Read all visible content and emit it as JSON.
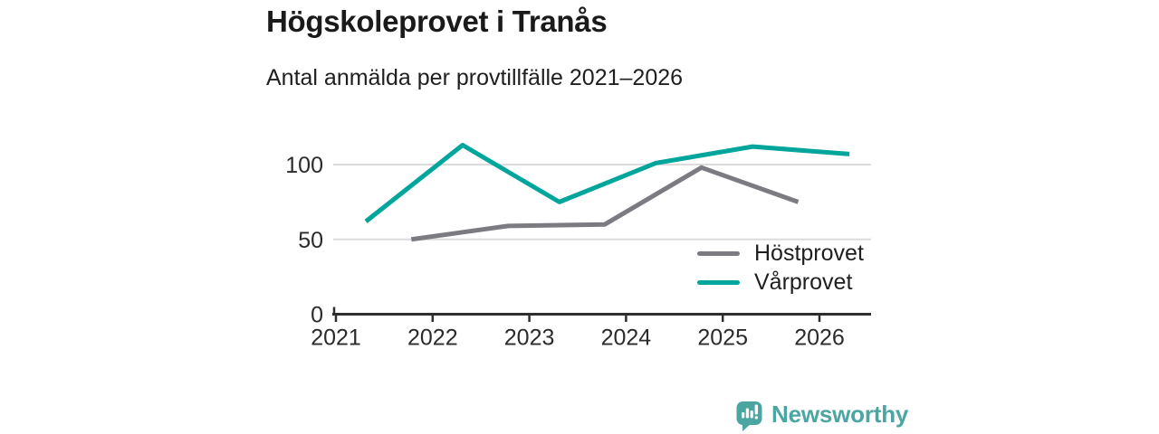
{
  "chart_data": {
    "type": "line",
    "title": "Högskoleprovet i Tranås",
    "subtitle": "Antal anmälda per provtillfälle 2021–2026",
    "x_ticks": [
      2021,
      2022,
      2023,
      2024,
      2025,
      2026
    ],
    "y_ticks": [
      0,
      50,
      100
    ],
    "ylim": [
      0,
      120
    ],
    "xlim": [
      2021,
      2026.55
    ],
    "grid": "horizontal-only",
    "legend_position": "inside-right",
    "axis_color": "#2e2e2e",
    "gridline_color": "#dcdcdc",
    "series": [
      {
        "name": "Höstprovet",
        "color": "#7b7b81",
        "x": [
          2021.78,
          2022.78,
          2023.78,
          2024.78,
          2025.78
        ],
        "values": [
          50,
          59,
          60,
          98,
          75
        ]
      },
      {
        "name": "Vårprovet",
        "color": "#00a59c",
        "x": [
          2021.31,
          2022.31,
          2023.31,
          2024.31,
          2025.31,
          2026.31
        ],
        "values": [
          62,
          113,
          75,
          101,
          112,
          107
        ]
      }
    ]
  },
  "branding": {
    "wordmark": "Newsworthy",
    "color": "#4ba6a2"
  }
}
